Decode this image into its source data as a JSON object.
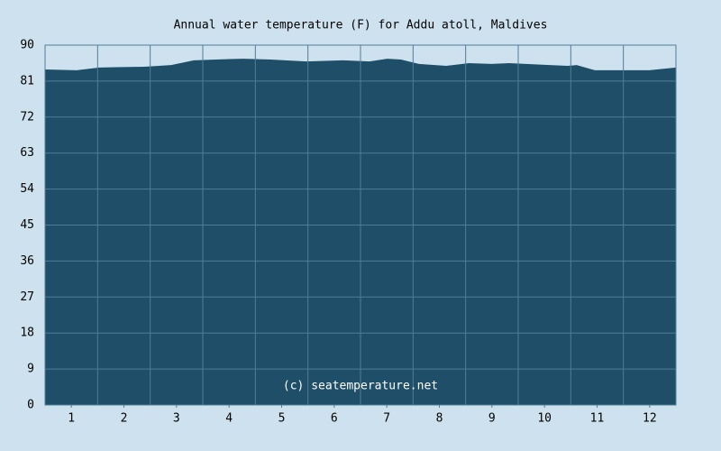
{
  "chart_data": {
    "type": "area",
    "title": "Annual water temperature (F) for Addu atoll, Maldives",
    "watermark": "(c) seatemperature.net",
    "x": [
      0,
      0.6,
      1.03,
      1.89,
      2.4,
      2.83,
      3.26,
      3.77,
      4.29,
      4.97,
      5.66,
      6.17,
      6.51,
      6.77,
      7.11,
      7.63,
      8.06,
      8.49,
      8.83,
      9.6,
      9.94,
      10.11,
      10.46,
      10.97,
      11.49,
      12
    ],
    "values": [
      83.9,
      83.7,
      84.4,
      84.6,
      85.0,
      86.2,
      86.4,
      86.6,
      86.4,
      85.9,
      86.2,
      85.9,
      86.6,
      86.4,
      85.3,
      84.8,
      85.5,
      85.3,
      85.5,
      85.0,
      84.8,
      85.0,
      83.7,
      83.7,
      83.7,
      84.4
    ],
    "color": "#1f4e69",
    "xlim": [
      0,
      12
    ],
    "xticks": [
      {
        "value": 0.5,
        "label": "1"
      },
      {
        "value": 1.5,
        "label": "2"
      },
      {
        "value": 2.5,
        "label": "3"
      },
      {
        "value": 3.5,
        "label": "4"
      },
      {
        "value": 4.5,
        "label": "5"
      },
      {
        "value": 5.5,
        "label": "6"
      },
      {
        "value": 6.5,
        "label": "7"
      },
      {
        "value": 7.5,
        "label": "8"
      },
      {
        "value": 8.5,
        "label": "9"
      },
      {
        "value": 9.5,
        "label": "10"
      },
      {
        "value": 10.5,
        "label": "11"
      },
      {
        "value": 11.5,
        "label": "12"
      }
    ],
    "ylim": [
      0,
      90
    ],
    "yticks": [
      0,
      9,
      18,
      27,
      36,
      45,
      54,
      63,
      72,
      81,
      90
    ],
    "grid": true
  }
}
